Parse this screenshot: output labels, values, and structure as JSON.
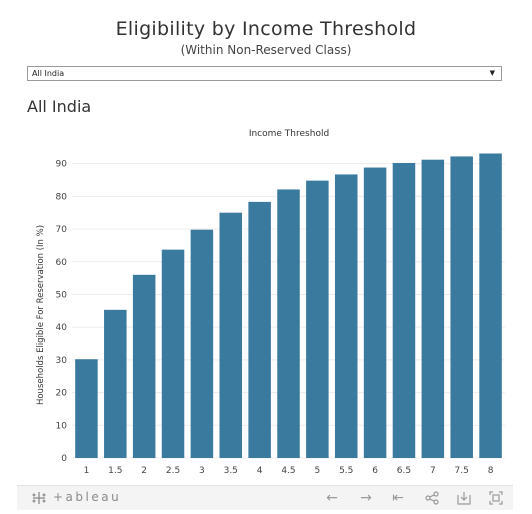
{
  "header": {
    "title": "Eligibility by Income Threshold",
    "subtitle": "(Within Non-Reserved Class)"
  },
  "filter": {
    "selected": "All India"
  },
  "section_heading": "All India",
  "chart_data": {
    "type": "bar",
    "title": "Income Threshold",
    "xlabel": "",
    "ylabel": "Households Eligible For Reservation (In %)",
    "categories": [
      "1",
      "1.5",
      "2",
      "2.5",
      "3",
      "3.5",
      "4",
      "4.5",
      "5",
      "5.5",
      "6",
      "6.5",
      "7",
      "7.5",
      "8"
    ],
    "values": [
      30.2,
      45.3,
      56.0,
      63.7,
      69.8,
      75.0,
      78.3,
      82.1,
      84.8,
      86.7,
      88.8,
      90.2,
      91.2,
      92.2,
      93.1
    ],
    "ylim": [
      0,
      96
    ],
    "yticks": [
      0,
      10,
      20,
      30,
      40,
      50,
      60,
      70,
      80,
      90
    ],
    "grid": true,
    "bar_color": "#3b7a9f"
  },
  "toolbar": {
    "brand": "+ableau",
    "icons": [
      "undo-icon",
      "redo-icon",
      "revert-icon",
      "share-icon",
      "download-icon",
      "fullscreen-icon"
    ]
  }
}
